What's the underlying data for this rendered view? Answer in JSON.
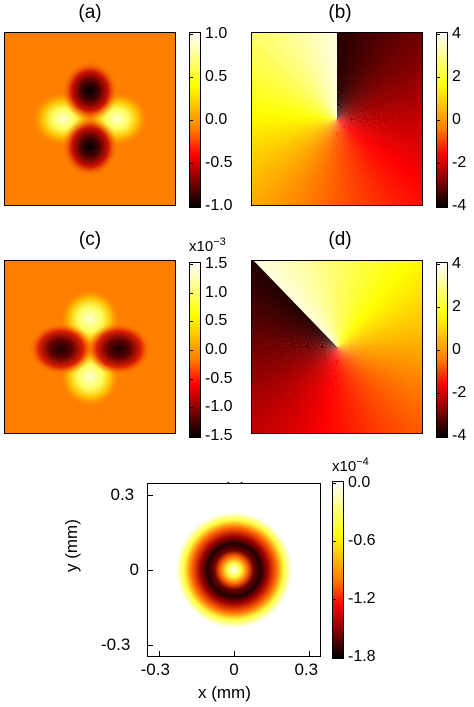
{
  "panels": [
    {
      "label": "(a)",
      "chart_data": {
        "type": "heatmap",
        "description_key": "quadrupole amplitude: positive lobes left/right, negative lobes top/bottom",
        "colormap": "hot",
        "clim": [
          -1.0,
          1.0
        ],
        "colorbar_ticks": [
          "1.0",
          "0.5",
          "0.0",
          "-0.5",
          "-1.0"
        ],
        "colorbar_exponent": ""
      }
    },
    {
      "label": "(b)",
      "chart_data": {
        "type": "heatmap",
        "colormap": "hot",
        "clim": [
          -4,
          4
        ],
        "colorbar_ticks": [
          "4",
          "2",
          "0",
          "-2",
          "-4"
        ],
        "colorbar_exponent": ""
      }
    },
    {
      "label": "(c)",
      "chart_data": {
        "type": "heatmap",
        "colormap": "hot",
        "clim": [
          -1.5,
          1.5
        ],
        "colorbar_ticks": [
          "1.5",
          "1.0",
          "0.5",
          "0.0",
          "-0.5",
          "-1.0",
          "-1.5"
        ],
        "colorbar_exponent": "x10",
        "colorbar_exponent_power": "−3"
      }
    },
    {
      "label": "(d)",
      "chart_data": {
        "type": "heatmap",
        "colormap": "hot",
        "clim": [
          -4,
          4
        ],
        "colorbar_ticks": [
          "4",
          "2",
          "0",
          "-2",
          "-4"
        ],
        "colorbar_exponent": ""
      }
    },
    {
      "label": "(e)",
      "chart_data": {
        "type": "heatmap",
        "colormap": "hot",
        "clim": [
          -1.8,
          0.0
        ],
        "colorbar_ticks": [
          "0.0",
          "-0.6",
          "-1.2",
          "-1.8"
        ],
        "colorbar_exponent": "x10",
        "colorbar_exponent_power": "−4",
        "x_ticks": [
          "-0.3",
          "0",
          "0.3"
        ],
        "y_ticks": [
          "0.3",
          "0",
          "-0.3"
        ],
        "xlabel": "x (mm)",
        "ylabel": "y (mm)",
        "xlim": [
          -0.35,
          0.35
        ],
        "ylim": [
          -0.35,
          0.35
        ]
      }
    }
  ],
  "colors": {
    "background_orange": "#ff7f00",
    "hot_black": "#000000",
    "hot_red": "#ff0000",
    "hot_yellow": "#ffff00",
    "hot_white": "#ffffff"
  }
}
